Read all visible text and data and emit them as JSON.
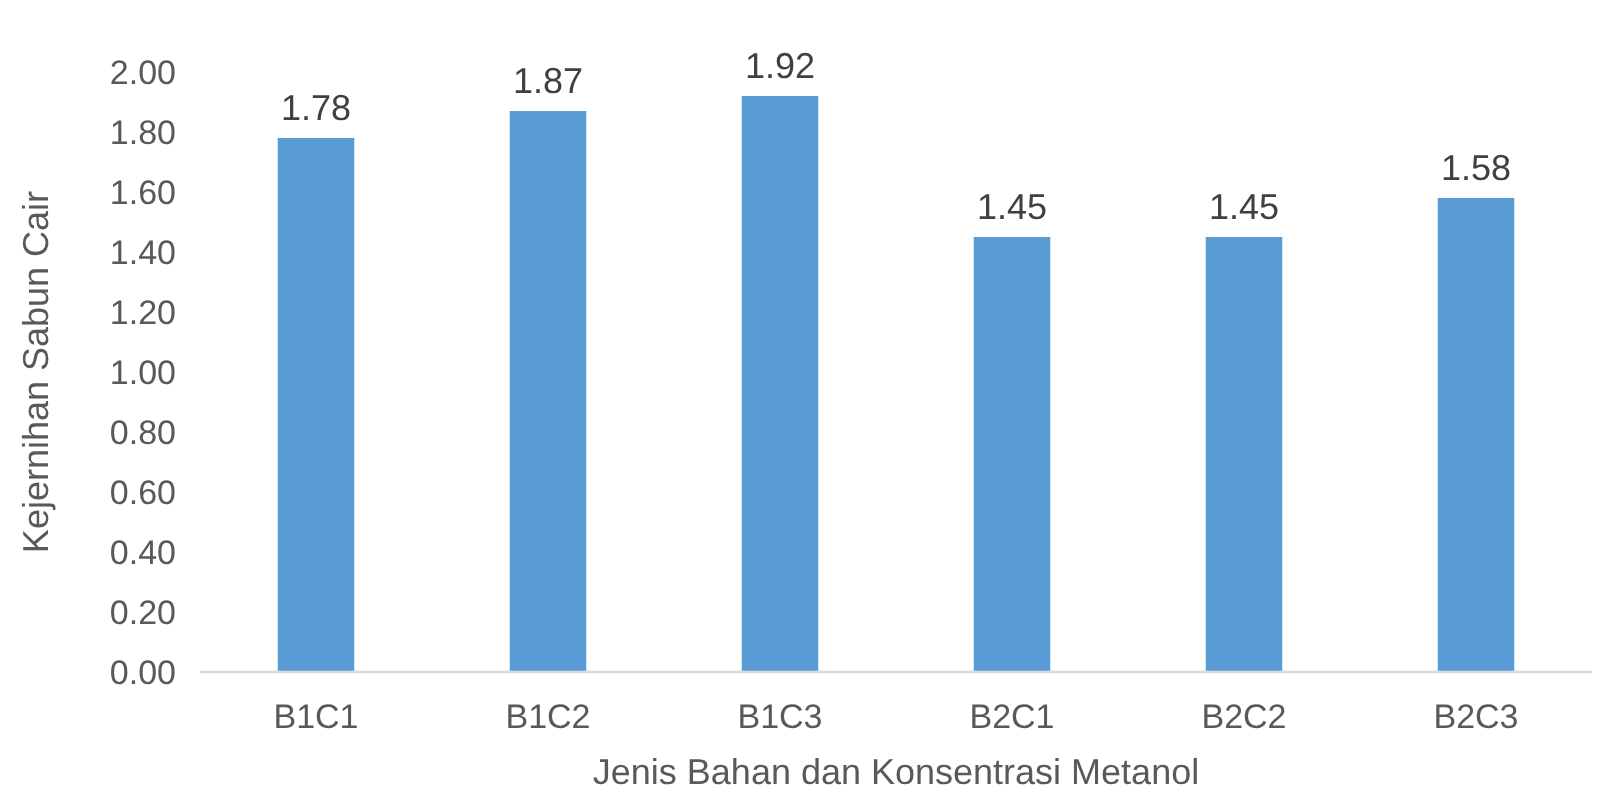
{
  "chart_data": {
    "type": "bar",
    "xlabel": "Jenis Bahan dan Konsentrasi Metanol",
    "ylabel": "Kejernihan Sabun Cair",
    "categories": [
      "B1C1",
      "B1C2",
      "B1C3",
      "B2C1",
      "B2C2",
      "B2C3"
    ],
    "values": [
      1.78,
      1.87,
      1.92,
      1.45,
      1.45,
      1.58
    ],
    "color": "#5b9bd5",
    "ylim": [
      0,
      2
    ],
    "yticks": [
      {
        "value": 0,
        "label": "0.00"
      },
      {
        "value": 0.2,
        "label": "0.20"
      },
      {
        "value": 0.4,
        "label": "0.40"
      },
      {
        "value": 0.6,
        "label": "0.60"
      },
      {
        "value": 0.8,
        "label": "0.80"
      },
      {
        "value": 1,
        "label": "1.00"
      },
      {
        "value": 1.2,
        "label": "1.20"
      },
      {
        "value": 1.4,
        "label": "1.40"
      },
      {
        "value": 1.6,
        "label": "1.60"
      },
      {
        "value": 1.8,
        "label": "1.80"
      },
      {
        "value": 2,
        "label": "2.00"
      }
    ],
    "data_labels": true
  }
}
